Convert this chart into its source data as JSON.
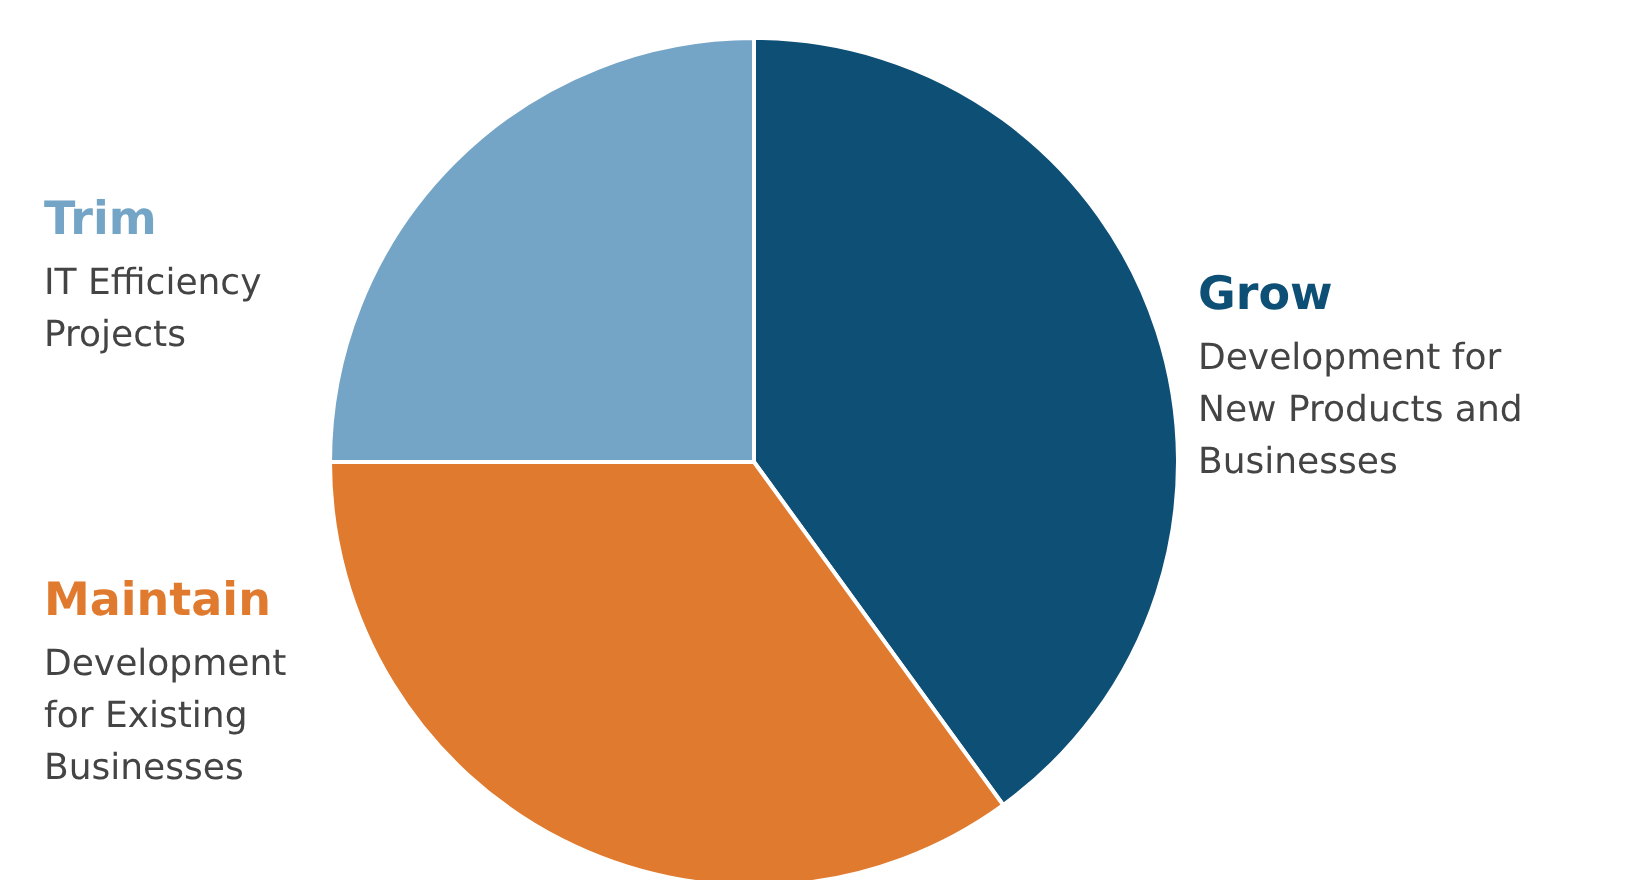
{
  "chart_data": {
    "type": "pie",
    "categories": [
      "Grow",
      "Maintain",
      "Trim"
    ],
    "values": [
      40,
      35,
      25
    ],
    "colors": [
      "#0e4f75",
      "#e07a2e",
      "#74a5c6"
    ],
    "annotations": [
      "Development for New Products and Businesses",
      "Development for Existing Businesses",
      "IT Efficiency Projects"
    ]
  }
}
